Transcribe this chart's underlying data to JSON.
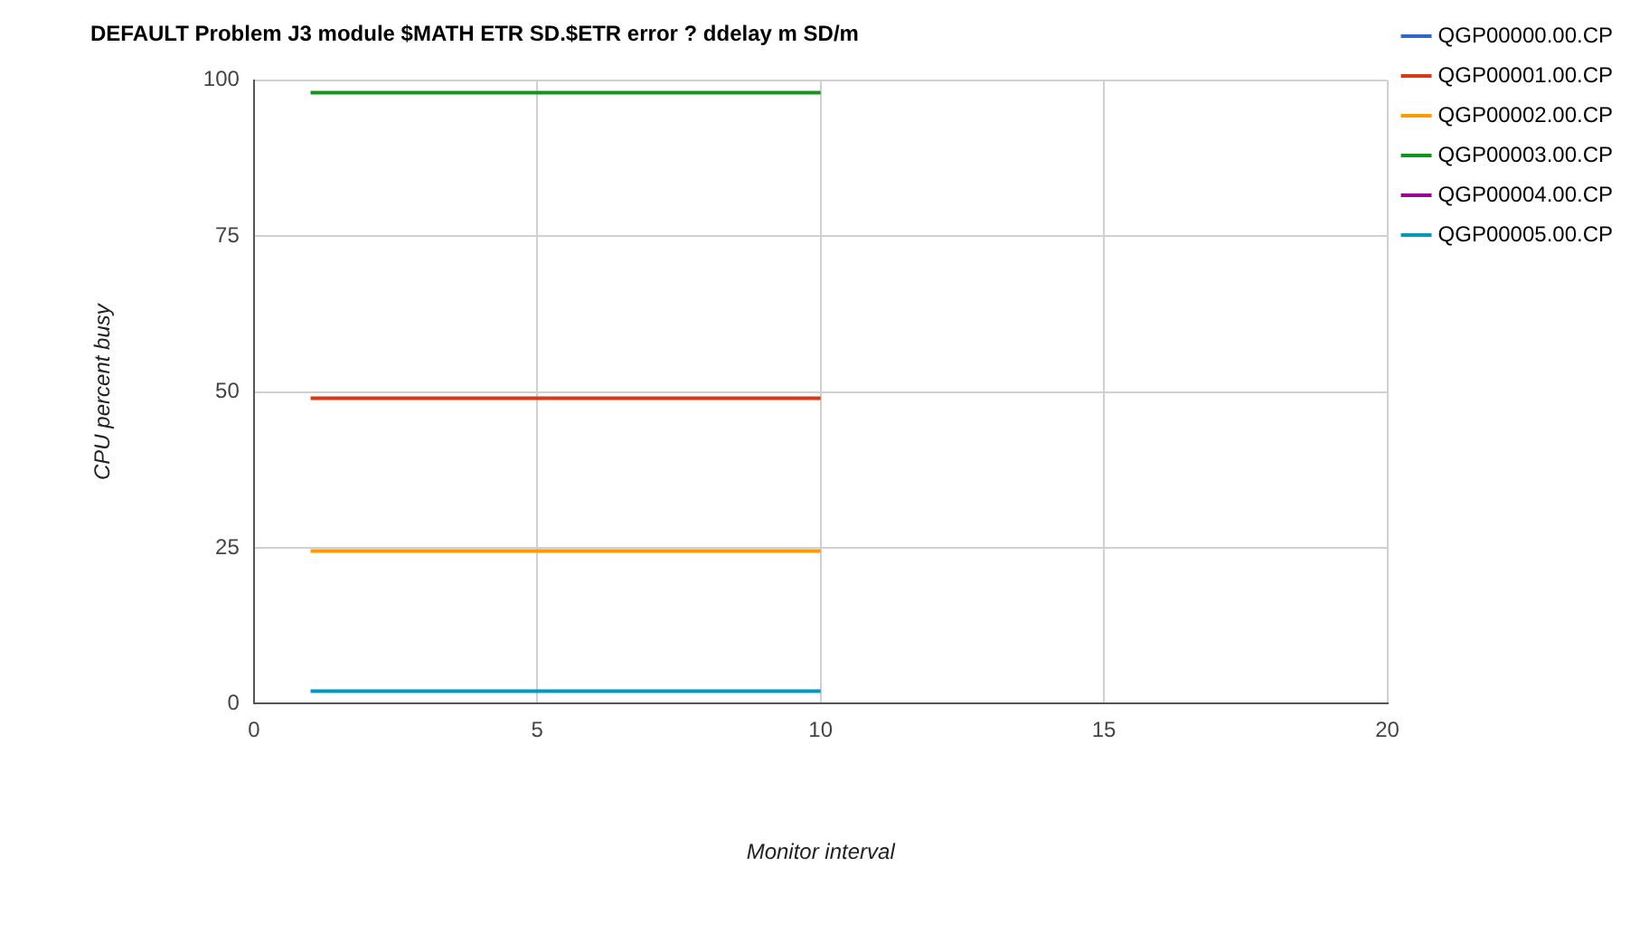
{
  "chart_data": {
    "type": "line",
    "title": "DEFAULT Problem J3 module $MATH ETR SD.$ETR error ? ddelay m SD/m",
    "xlabel": "Monitor interval",
    "ylabel": "CPU percent busy",
    "x": [
      1,
      10
    ],
    "series": [
      {
        "name": "QGP00000.00.CP",
        "color": "#3366cc",
        "values": [
          null,
          null
        ]
      },
      {
        "name": "QGP00001.00.CP",
        "color": "#dc3912",
        "values": [
          49,
          49
        ]
      },
      {
        "name": "QGP00002.00.CP",
        "color": "#ff9900",
        "values": [
          24.5,
          24.5
        ]
      },
      {
        "name": "QGP00003.00.CP",
        "color": "#109618",
        "values": [
          98,
          98
        ]
      },
      {
        "name": "QGP00004.00.CP",
        "color": "#990099",
        "values": [
          null,
          null
        ]
      },
      {
        "name": "QGP00005.00.CP",
        "color": "#0099c6",
        "values": [
          2,
          2
        ]
      }
    ],
    "xlim": [
      0,
      20
    ],
    "xticks": [
      0,
      5,
      10,
      15,
      20
    ],
    "ylim": [
      0,
      100
    ],
    "yticks": [
      0,
      25,
      50,
      75,
      100
    ],
    "grid": true,
    "legend": "right",
    "marker": "none",
    "line_style": "solid"
  }
}
